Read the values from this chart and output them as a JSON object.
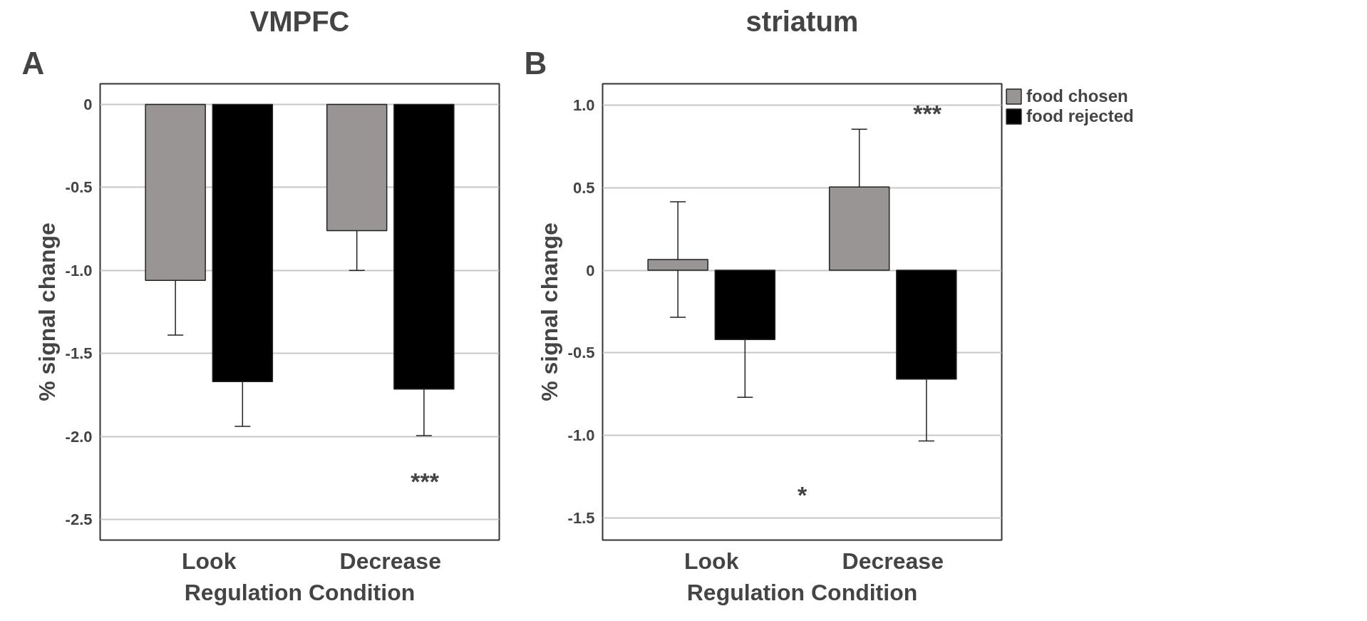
{
  "chart_data": [
    {
      "type": "bar",
      "title": "VMPFC",
      "xlabel": "Regulation Condition",
      "ylabel": "% signal change",
      "categories": [
        "Look",
        "Decrease"
      ],
      "series": [
        {
          "color": "#989594",
          "values": [
            -1.06,
            -0.76
          ],
          "errors": [
            0.33,
            0.24
          ]
        },
        {
          "color": "#000000",
          "values": [
            -1.67,
            -1.715
          ],
          "errors": [
            0.27,
            0.28
          ]
        }
      ],
      "ylim": [
        -2.625,
        0.125
      ],
      "yticks": [
        0,
        -0.5,
        {
          "value": -1,
          "label": "-1.0"
        },
        -1.5,
        {
          "value": -2,
          "label": "-2.0"
        },
        -2.5
      ],
      "grid": "y",
      "legend": false,
      "annotations": [
        "A",
        "***"
      ]
    },
    {
      "type": "bar",
      "title": "striatum",
      "xlabel": "Regulation Condition",
      "ylabel": "% signal change",
      "categories": [
        "Look",
        "Decrease"
      ],
      "series": [
        {
          "name": "food chosen",
          "color": "#989594",
          "values": [
            0.065,
            0.505
          ],
          "errors": [
            0.35,
            0.35
          ]
        },
        {
          "name": "food rejected",
          "color": "#000000",
          "values": [
            -0.42,
            -0.66
          ],
          "errors": [
            0.35,
            0.375
          ]
        }
      ],
      "ylim": [
        -1.635,
        1.13
      ],
      "yticks": [
        {
          "value": 1,
          "label": "1.0"
        },
        0.5,
        0,
        -0.5,
        {
          "value": -1,
          "label": "-1.0"
        },
        -1.5
      ],
      "grid": "y",
      "legend": "right",
      "annotations": [
        "B",
        "***",
        "*"
      ]
    }
  ]
}
